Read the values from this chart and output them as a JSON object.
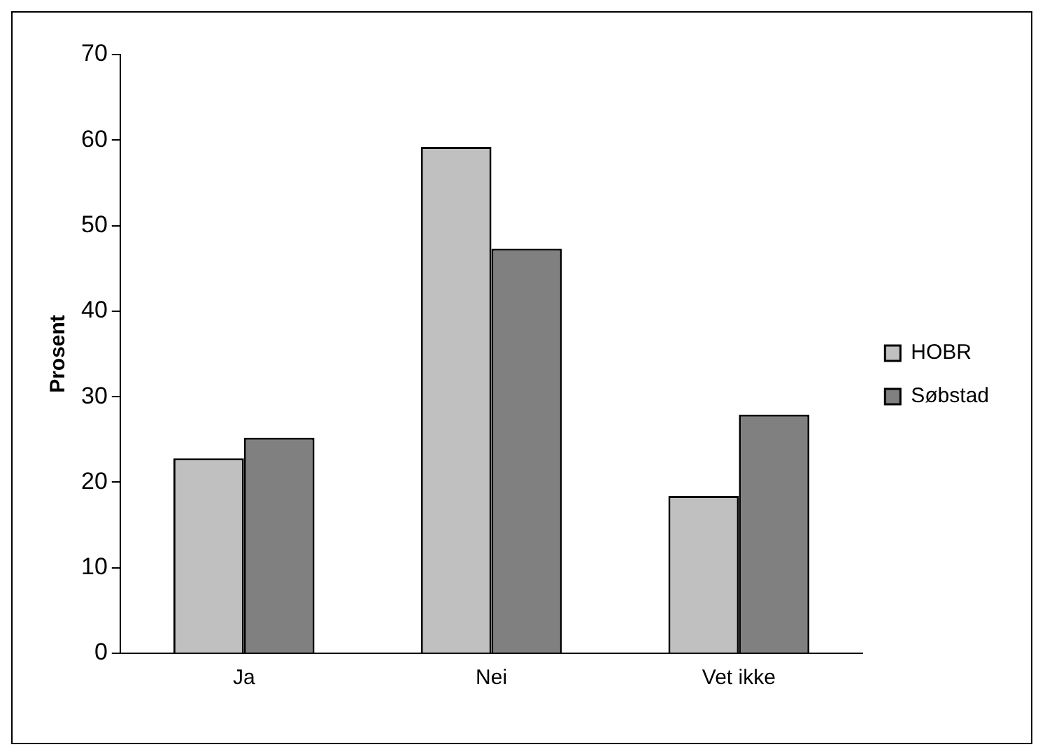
{
  "chart_data": {
    "type": "bar",
    "ylabel": "Prosent",
    "categories": [
      "Ja",
      "Nei",
      "Vet ikke"
    ],
    "series": [
      {
        "name": "HOBR",
        "color": "#c0c0c0",
        "values": [
          22.8,
          59.2,
          18.4
        ]
      },
      {
        "name": "Søbstad",
        "color": "#808080",
        "values": [
          25.2,
          47.3,
          27.9
        ]
      }
    ],
    "ylim": [
      0,
      70
    ],
    "yticks": [
      0,
      10,
      20,
      30,
      40,
      50,
      60,
      70
    ],
    "grid": false,
    "legend": "right"
  }
}
